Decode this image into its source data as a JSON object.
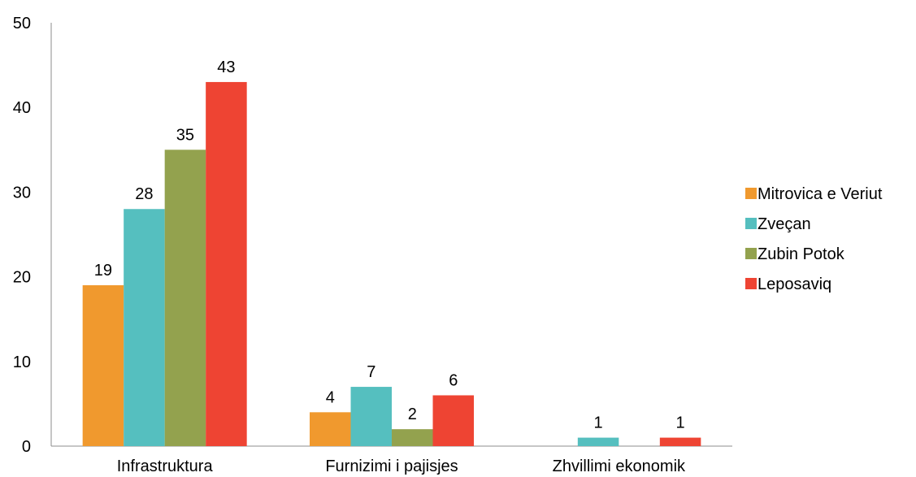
{
  "chart_data": {
    "type": "bar",
    "categories": [
      "Infrastruktura",
      "Furnizimi  i pajisjes",
      "Zhvillimi ekonomik"
    ],
    "series": [
      {
        "name": "Mitrovica e Veriut",
        "color": "#F0992E",
        "values": [
          19,
          4,
          0
        ],
        "labels": [
          "19",
          "4",
          ""
        ]
      },
      {
        "name": "Zveçan",
        "color": "#55BFBF",
        "values": [
          28,
          7,
          1
        ],
        "labels": [
          "28",
          "7",
          "1"
        ]
      },
      {
        "name": "Zubin Potok",
        "color": "#93A24E",
        "values": [
          35,
          2,
          0
        ],
        "labels": [
          "35",
          "2",
          ""
        ]
      },
      {
        "name": "Leposaviq",
        "color": "#EE4433",
        "values": [
          43,
          6,
          1
        ],
        "labels": [
          "43",
          "6",
          "1"
        ]
      }
    ],
    "ylim": [
      0,
      50
    ],
    "yticks": [
      "0",
      "10",
      "20",
      "30",
      "40",
      "50"
    ],
    "grid": false,
    "legend": "right"
  }
}
